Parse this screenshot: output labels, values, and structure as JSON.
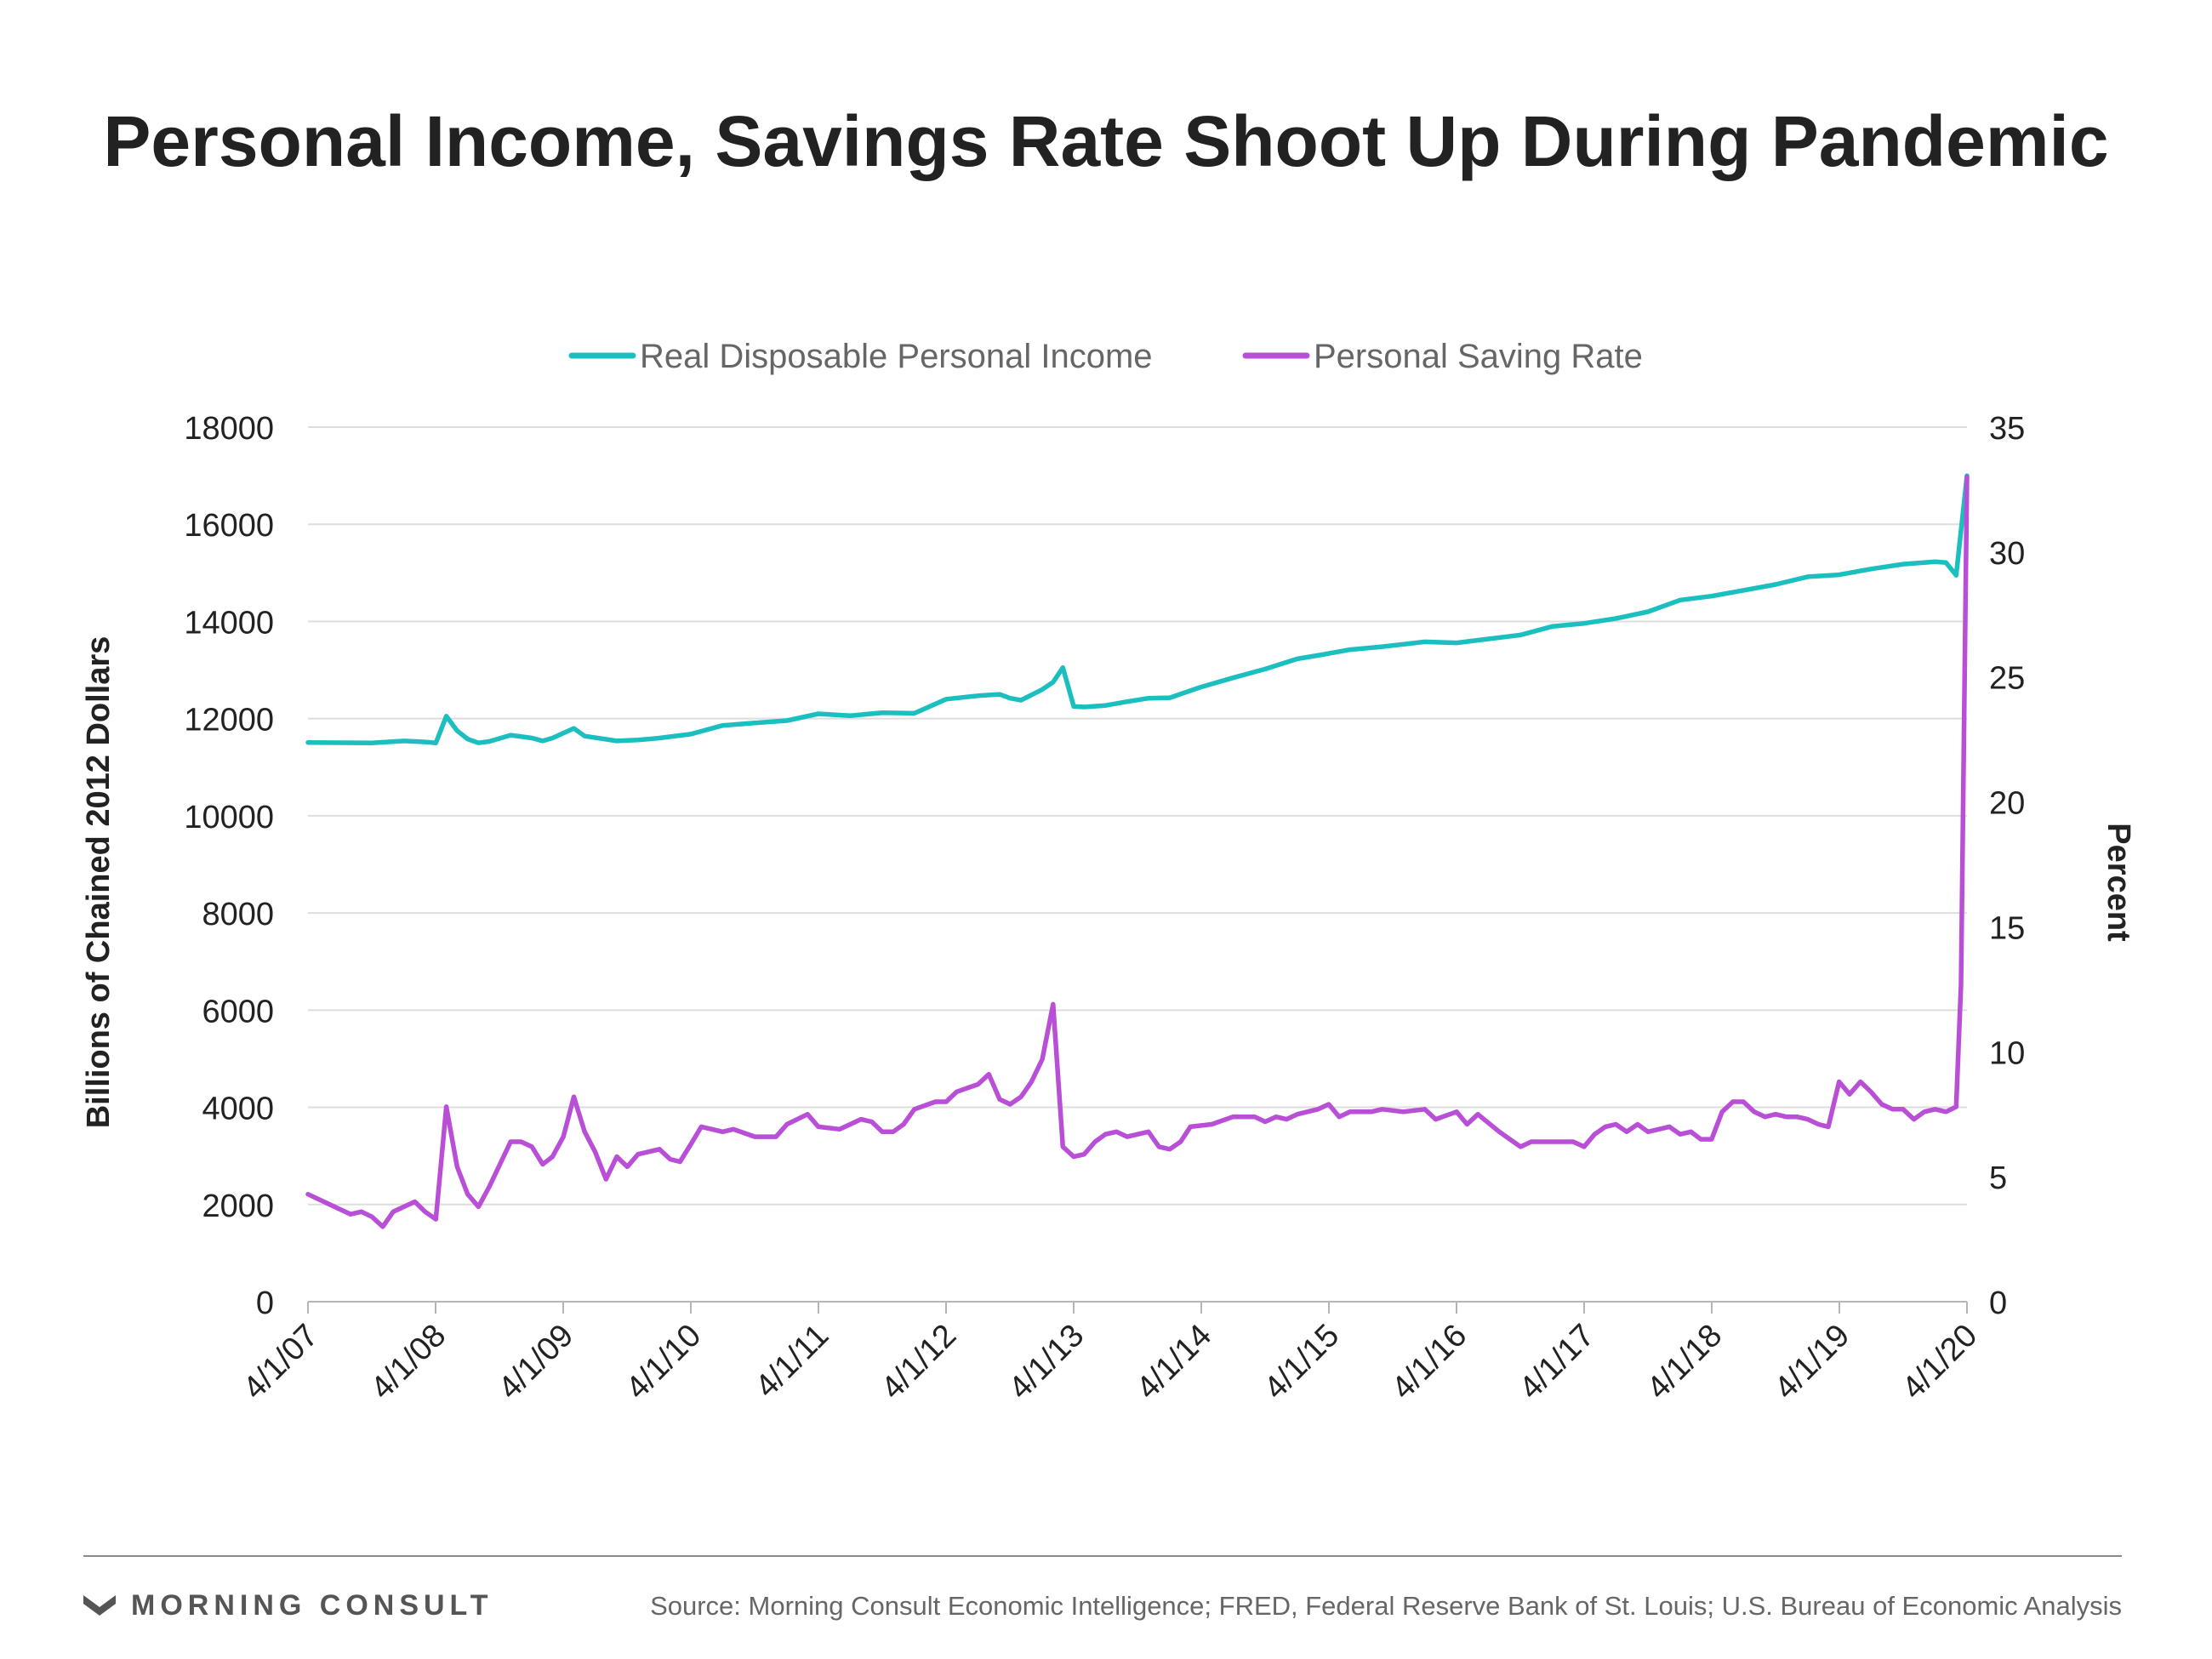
{
  "title": "Personal Income, Savings Rate Shoot Up During Pandemic",
  "footer": {
    "brand": "MORNING CONSULT",
    "source": "Source: Morning Consult Economic Intelligence; FRED, Federal Reserve Bank of St. Louis; U.S. Bureau of Economic Analysis"
  },
  "chart_data": {
    "type": "line",
    "title": "Personal Income, Savings Rate Shoot Up During Pandemic",
    "ylabel": "Billions of Chained 2012 Dollars",
    "y2label": "Percent",
    "ylim": [
      0,
      18000
    ],
    "y2lim": [
      0,
      35
    ],
    "yticks": [
      0,
      2000,
      4000,
      6000,
      8000,
      10000,
      12000,
      14000,
      16000,
      18000
    ],
    "y2ticks": [
      0,
      5,
      10,
      15,
      20,
      25,
      30,
      35
    ],
    "xlim": [
      "2007-04-01",
      "2020-04-01"
    ],
    "xticks": [
      "4/1/07",
      "4/1/08",
      "4/1/09",
      "4/1/10",
      "4/1/11",
      "4/1/12",
      "4/1/13",
      "4/1/14",
      "4/1/15",
      "4/1/16",
      "4/1/17",
      "4/1/18",
      "4/1/19",
      "4/1/20"
    ],
    "grid": true,
    "legend_position": "top-center",
    "series": [
      {
        "name": "Real Disposable Personal Income",
        "axis": "left",
        "color": "#1cbfbf",
        "points": [
          [
            "2007-04-01",
            11510
          ],
          [
            "2007-10-01",
            11500
          ],
          [
            "2008-01-01",
            11540
          ],
          [
            "2008-03-01",
            11520
          ],
          [
            "2008-04-01",
            11500
          ],
          [
            "2008-05-01",
            12050
          ],
          [
            "2008-06-01",
            11750
          ],
          [
            "2008-07-01",
            11580
          ],
          [
            "2008-08-01",
            11500
          ],
          [
            "2008-09-01",
            11530
          ],
          [
            "2008-11-01",
            11660
          ],
          [
            "2009-01-01",
            11600
          ],
          [
            "2009-02-01",
            11540
          ],
          [
            "2009-03-01",
            11600
          ],
          [
            "2009-05-01",
            11800
          ],
          [
            "2009-06-01",
            11640
          ],
          [
            "2009-09-01",
            11540
          ],
          [
            "2009-11-01",
            11560
          ],
          [
            "2010-01-01",
            11600
          ],
          [
            "2010-04-01",
            11680
          ],
          [
            "2010-07-01",
            11860
          ],
          [
            "2010-10-01",
            11910
          ],
          [
            "2011-01-01",
            11960
          ],
          [
            "2011-04-01",
            12100
          ],
          [
            "2011-07-01",
            12060
          ],
          [
            "2011-10-01",
            12120
          ],
          [
            "2012-01-01",
            12110
          ],
          [
            "2012-04-01",
            12400
          ],
          [
            "2012-07-01",
            12470
          ],
          [
            "2012-09-01",
            12500
          ],
          [
            "2012-10-01",
            12420
          ],
          [
            "2012-11-01",
            12380
          ],
          [
            "2013-01-01",
            12600
          ],
          [
            "2013-02-01",
            12750
          ],
          [
            "2013-03-01",
            13050
          ],
          [
            "2013-04-01",
            12250
          ],
          [
            "2013-05-01",
            12240
          ],
          [
            "2013-07-01",
            12270
          ],
          [
            "2013-09-01",
            12350
          ],
          [
            "2013-11-01",
            12420
          ],
          [
            "2014-01-01",
            12430
          ],
          [
            "2014-04-01",
            12650
          ],
          [
            "2014-07-01",
            12840
          ],
          [
            "2014-10-01",
            13020
          ],
          [
            "2015-01-01",
            13230
          ],
          [
            "2015-03-01",
            13300
          ],
          [
            "2015-06-01",
            13420
          ],
          [
            "2015-09-01",
            13480
          ],
          [
            "2016-01-01",
            13580
          ],
          [
            "2016-04-01",
            13560
          ],
          [
            "2016-07-01",
            13640
          ],
          [
            "2016-10-01",
            13720
          ],
          [
            "2017-01-01",
            13900
          ],
          [
            "2017-04-01",
            13960
          ],
          [
            "2017-07-01",
            14060
          ],
          [
            "2017-10-01",
            14200
          ],
          [
            "2018-01-01",
            14440
          ],
          [
            "2018-04-01",
            14520
          ],
          [
            "2018-07-01",
            14640
          ],
          [
            "2018-10-01",
            14760
          ],
          [
            "2019-01-01",
            14920
          ],
          [
            "2019-04-01",
            14960
          ],
          [
            "2019-07-01",
            15080
          ],
          [
            "2019-10-01",
            15180
          ],
          [
            "2020-01-01",
            15230
          ],
          [
            "2020-02-01",
            15210
          ],
          [
            "2020-03-01",
            14950
          ],
          [
            "2020-04-01",
            17000
          ]
        ]
      },
      {
        "name": "Personal Saving Rate",
        "axis": "right",
        "color": "#b94fd6",
        "points": [
          [
            "2007-04-01",
            4.3
          ],
          [
            "2007-06-01",
            3.9
          ],
          [
            "2007-08-01",
            3.5
          ],
          [
            "2007-09-01",
            3.6
          ],
          [
            "2007-10-01",
            3.4
          ],
          [
            "2007-11-01",
            3.0
          ],
          [
            "2007-12-01",
            3.6
          ],
          [
            "2008-01-01",
            3.8
          ],
          [
            "2008-02-01",
            4.0
          ],
          [
            "2008-03-01",
            3.6
          ],
          [
            "2008-04-01",
            3.3
          ],
          [
            "2008-05-01",
            7.8
          ],
          [
            "2008-06-01",
            5.4
          ],
          [
            "2008-07-01",
            4.3
          ],
          [
            "2008-08-01",
            3.8
          ],
          [
            "2008-09-01",
            4.6
          ],
          [
            "2008-11-01",
            6.4
          ],
          [
            "2008-12-01",
            6.4
          ],
          [
            "2009-01-01",
            6.2
          ],
          [
            "2009-02-01",
            5.5
          ],
          [
            "2009-03-01",
            5.8
          ],
          [
            "2009-04-01",
            6.6
          ],
          [
            "2009-05-01",
            8.2
          ],
          [
            "2009-06-01",
            6.8
          ],
          [
            "2009-07-01",
            6.0
          ],
          [
            "2009-08-01",
            4.9
          ],
          [
            "2009-09-01",
            5.8
          ],
          [
            "2009-10-01",
            5.4
          ],
          [
            "2009-11-01",
            5.9
          ],
          [
            "2010-01-01",
            6.1
          ],
          [
            "2010-02-01",
            5.7
          ],
          [
            "2010-03-01",
            5.6
          ],
          [
            "2010-04-01",
            6.3
          ],
          [
            "2010-05-01",
            7.0
          ],
          [
            "2010-07-01",
            6.8
          ],
          [
            "2010-08-01",
            6.9
          ],
          [
            "2010-10-01",
            6.6
          ],
          [
            "2010-12-01",
            6.6
          ],
          [
            "2011-01-01",
            7.1
          ],
          [
            "2011-03-01",
            7.5
          ],
          [
            "2011-04-01",
            7.0
          ],
          [
            "2011-06-01",
            6.9
          ],
          [
            "2011-08-01",
            7.3
          ],
          [
            "2011-09-01",
            7.2
          ],
          [
            "2011-10-01",
            6.8
          ],
          [
            "2011-11-01",
            6.8
          ],
          [
            "2011-12-01",
            7.1
          ],
          [
            "2012-01-01",
            7.7
          ],
          [
            "2012-03-01",
            8.0
          ],
          [
            "2012-04-01",
            8.0
          ],
          [
            "2012-05-01",
            8.4
          ],
          [
            "2012-07-01",
            8.7
          ],
          [
            "2012-08-01",
            9.1
          ],
          [
            "2012-09-01",
            8.1
          ],
          [
            "2012-10-01",
            7.9
          ],
          [
            "2012-11-01",
            8.2
          ],
          [
            "2012-12-01",
            8.8
          ],
          [
            "2013-01-01",
            9.7
          ],
          [
            "2013-02-01",
            11.9
          ],
          [
            "2013-03-01",
            6.2
          ],
          [
            "2013-04-01",
            5.8
          ],
          [
            "2013-05-01",
            5.9
          ],
          [
            "2013-06-01",
            6.4
          ],
          [
            "2013-07-01",
            6.7
          ],
          [
            "2013-08-01",
            6.8
          ],
          [
            "2013-09-01",
            6.6
          ],
          [
            "2013-11-01",
            6.8
          ],
          [
            "2013-12-01",
            6.2
          ],
          [
            "2014-01-01",
            6.1
          ],
          [
            "2014-02-01",
            6.4
          ],
          [
            "2014-03-01",
            7.0
          ],
          [
            "2014-05-01",
            7.1
          ],
          [
            "2014-07-01",
            7.4
          ],
          [
            "2014-09-01",
            7.4
          ],
          [
            "2014-10-01",
            7.2
          ],
          [
            "2014-11-01",
            7.4
          ],
          [
            "2014-12-01",
            7.3
          ],
          [
            "2015-01-01",
            7.5
          ],
          [
            "2015-03-01",
            7.7
          ],
          [
            "2015-04-01",
            7.9
          ],
          [
            "2015-05-01",
            7.4
          ],
          [
            "2015-06-01",
            7.6
          ],
          [
            "2015-08-01",
            7.6
          ],
          [
            "2015-09-01",
            7.7
          ],
          [
            "2015-11-01",
            7.6
          ],
          [
            "2016-01-01",
            7.7
          ],
          [
            "2016-02-01",
            7.3
          ],
          [
            "2016-04-01",
            7.6
          ],
          [
            "2016-05-01",
            7.1
          ],
          [
            "2016-06-01",
            7.5
          ],
          [
            "2016-08-01",
            6.8
          ],
          [
            "2016-10-01",
            6.2
          ],
          [
            "2016-11-01",
            6.4
          ],
          [
            "2017-01-01",
            6.4
          ],
          [
            "2017-03-01",
            6.4
          ],
          [
            "2017-04-01",
            6.2
          ],
          [
            "2017-05-01",
            6.7
          ],
          [
            "2017-06-01",
            7.0
          ],
          [
            "2017-07-01",
            7.1
          ],
          [
            "2017-08-01",
            6.8
          ],
          [
            "2017-09-01",
            7.1
          ],
          [
            "2017-10-01",
            6.8
          ],
          [
            "2017-12-01",
            7.0
          ],
          [
            "2018-01-01",
            6.7
          ],
          [
            "2018-02-01",
            6.8
          ],
          [
            "2018-03-01",
            6.5
          ],
          [
            "2018-04-01",
            6.5
          ],
          [
            "2018-05-01",
            7.6
          ],
          [
            "2018-06-01",
            8.0
          ],
          [
            "2018-07-01",
            8.0
          ],
          [
            "2018-08-01",
            7.6
          ],
          [
            "2018-09-01",
            7.4
          ],
          [
            "2018-10-01",
            7.5
          ],
          [
            "2018-11-01",
            7.4
          ],
          [
            "2018-12-01",
            7.4
          ],
          [
            "2019-01-01",
            7.3
          ],
          [
            "2019-02-01",
            7.1
          ],
          [
            "2019-03-01",
            7.0
          ],
          [
            "2019-04-01",
            8.8
          ],
          [
            "2019-05-01",
            8.3
          ],
          [
            "2019-06-01",
            8.8
          ],
          [
            "2019-07-01",
            8.4
          ],
          [
            "2019-08-01",
            7.9
          ],
          [
            "2019-09-01",
            7.7
          ],
          [
            "2019-10-01",
            7.7
          ],
          [
            "2019-11-01",
            7.3
          ],
          [
            "2019-12-01",
            7.6
          ],
          [
            "2020-01-01",
            7.7
          ],
          [
            "2020-02-01",
            7.6
          ],
          [
            "2020-03-01",
            7.8
          ],
          [
            "2020-03-15",
            12.7
          ],
          [
            "2020-04-01",
            33.0
          ]
        ]
      }
    ]
  }
}
